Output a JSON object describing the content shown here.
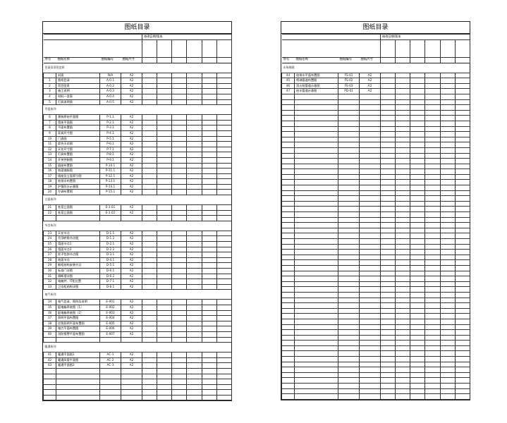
{
  "left": {
    "title": "图纸目录",
    "revision_header": "修改日期/版本",
    "headers": {
      "seq": "序号",
      "name": "图纸名称",
      "code": "图纸编号",
      "size": "图纸尺寸"
    },
    "sections": [
      {
        "label": "目录及项目信息",
        "rows": [
          [
            "",
            "封面",
            "N/A",
            "A2"
          ],
          [
            "1",
            "图纸目录",
            "A-0.1",
            "A2"
          ],
          [
            "2",
            "项目信息",
            "A-0.2",
            "A2"
          ],
          [
            "3",
            "施工说明",
            "A-0.3",
            "A2"
          ],
          [
            "4",
            "材料一览表",
            "A-0.4",
            "A2"
          ],
          [
            "5",
            "灯具说明表",
            "A-0.5",
            "A2"
          ]
        ],
        "blank_after": 0
      },
      {
        "label": "平面系列",
        "rows": [
          [
            "6",
            "建筑原始平面图",
            "P-1.1",
            "A2"
          ],
          [
            "7",
            "墙体平面图",
            "P-2.1",
            "A2"
          ],
          [
            "8",
            "平面布置图",
            "P-3.1",
            "A2"
          ],
          [
            "9",
            "家具尺寸图",
            "P-4.1",
            "A2"
          ],
          [
            "10",
            "门表图",
            "P-5.1",
            "A2"
          ],
          [
            "11",
            "综合天花图",
            "P-6.1",
            "A2"
          ],
          [
            "12",
            "天花尺寸图",
            "P-7.1",
            "A2"
          ],
          [
            "13",
            "灯具布置图",
            "P-8.1",
            "A2"
          ],
          [
            "14",
            "开关控制图",
            "P-9.1",
            "A2"
          ],
          [
            "15",
            "插座布置图",
            "P-10.1",
            "A2"
          ],
          [
            "16",
            "地面铺装图",
            "P-11.1",
            "A2"
          ],
          [
            "17",
            "插座及立面索引图",
            "P-12.1",
            "A2"
          ],
          [
            "18",
            "给排水布置图",
            "P-13.1",
            "A2"
          ],
          [
            "19",
            "护角防水示意图",
            "P-14.1",
            "A2"
          ],
          [
            "20",
            "空调布置图",
            "P-15.1",
            "A2"
          ]
        ],
        "blank_after": 0
      },
      {
        "label": "立面系列",
        "rows": [
          [
            "21",
            "各室立面图",
            "E-1.01",
            "A2"
          ],
          [
            "22",
            "各室立面图",
            "E-1.02",
            "A2"
          ]
        ],
        "blank_after": 1
      },
      {
        "label": "节点系列",
        "rows": [
          [
            "23",
            "天花节点",
            "D-1.1",
            "A2"
          ],
          [
            "24",
            "吊顶转角节点图",
            "D-1.2",
            "A2"
          ],
          [
            "25",
            "墙面节点1",
            "D-2.1",
            "A2"
          ],
          [
            "26",
            "墙面节点2",
            "D-2.2",
            "A2"
          ],
          [
            "27",
            "柱子包饰节点图",
            "D-3.1",
            "A2"
          ],
          [
            "28",
            "地面节点",
            "D-4.1",
            "A2"
          ],
          [
            "29",
            "橱柜结构安装节点",
            "D-5.1",
            "A2"
          ],
          [
            "30",
            "标准门详图",
            "D-6.1",
            "A2"
          ],
          [
            "31",
            "隔断墙详图",
            "D-6.2",
            "A2"
          ],
          [
            "32",
            "电箱井、IT柜位置",
            "D-7.1",
            "A2"
          ],
          [
            "33",
            "卫浴柜结构详图",
            "D-8.1",
            "A2"
          ]
        ],
        "blank_after": 0
      },
      {
        "label": "电气系列",
        "rows": [
          [
            "34",
            "电气目录、图例及说明",
            "E-001",
            "A2"
          ],
          [
            "35",
            "配电箱系统图（1）",
            "E-002",
            "A2"
          ],
          [
            "36",
            "配电箱系统图（2）",
            "E-003",
            "A2"
          ],
          [
            "37",
            "照明平面布置图",
            "E-004",
            "A2"
          ],
          [
            "38",
            "应急照明平面布置图",
            "E-005",
            "A2"
          ],
          [
            "39",
            "电力平面布置图",
            "E-006",
            "A2"
          ],
          [
            "40",
            "消防报警平面布置图",
            "E-007",
            "A2"
          ]
        ],
        "blank_after": 1
      },
      {
        "label": "暖通系列",
        "rows": [
          [
            "41",
            "暖通平面图1",
            "AC-1",
            "A2"
          ],
          [
            "42",
            "暖通风管平面图",
            "AC-2",
            "A2"
          ],
          [
            "43",
            "暖通平面图2",
            "AC-3",
            "A2"
          ]
        ],
        "blank_after": 6
      }
    ]
  },
  "right": {
    "title": "图纸目录",
    "revision_header": "修改日期/版本",
    "headers": {
      "seq": "序号",
      "name": "图纸名称",
      "code": "图纸编号",
      "size": "图纸尺寸"
    },
    "sections": [
      {
        "label": "水系统图",
        "rows": [
          [
            "44",
            "给排水平面布置图",
            "FS-01",
            "A2"
          ],
          [
            "45",
            "喷淋管道布置图",
            "FS-02",
            "A2"
          ],
          [
            "46",
            "消火栓管道示意图",
            "FS-03",
            "A2"
          ],
          [
            "47",
            "给水管道示意图",
            "PD-01",
            "A2"
          ]
        ],
        "blank_after": 57
      }
    ]
  }
}
